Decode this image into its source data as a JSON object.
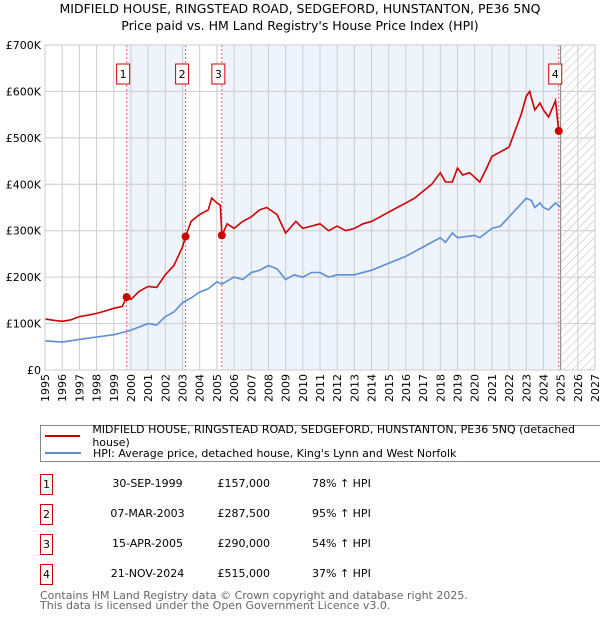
{
  "chart_data": {
    "type": "line",
    "title": "MIDFIELD HOUSE, RINGSTEAD ROAD, SEDGEFORD, HUNSTANTON, PE36 5NQ",
    "subtitle": "Price paid vs. HM Land Registry's House Price Index (HPI)",
    "xlim": [
      1995,
      2027
    ],
    "ylim": [
      0,
      700000
    ],
    "x_ticks": [
      "1995",
      "1996",
      "1997",
      "1998",
      "1999",
      "2000",
      "2001",
      "2002",
      "2003",
      "2004",
      "2005",
      "2006",
      "2007",
      "2008",
      "2009",
      "2010",
      "2011",
      "2012",
      "2013",
      "2014",
      "2015",
      "2016",
      "2017",
      "2018",
      "2019",
      "2020",
      "2021",
      "2022",
      "2023",
      "2024",
      "2025",
      "2026",
      "2027"
    ],
    "y_ticks": [
      {
        "v": 0,
        "label": "£0"
      },
      {
        "v": 100000,
        "label": "£100K"
      },
      {
        "v": 200000,
        "label": "£200K"
      },
      {
        "v": 300000,
        "label": "£300K"
      },
      {
        "v": 400000,
        "label": "£400K"
      },
      {
        "v": 500000,
        "label": "£500K"
      },
      {
        "v": 600000,
        "label": "£600K"
      },
      {
        "v": 700000,
        "label": "£700K"
      }
    ],
    "grid": true,
    "colors": {
      "property": "#cc0000",
      "hpi": "#5b8fd4",
      "shade": "#eef3fc",
      "marker_line": "#e06060"
    },
    "series": [
      {
        "name": "MIDFIELD HOUSE, RINGSTEAD ROAD, SEDGEFORD, HUNSTANTON, PE36 5NQ (detached house)",
        "color": "#cc0000",
        "x": [
          1995,
          1995.5,
          1996,
          1996.5,
          1997,
          1997.5,
          1998,
          1998.5,
          1999,
          1999.5,
          1999.75,
          2000,
          2000.5,
          2001,
          2001.5,
          2002,
          2002.5,
          2003,
          2003.18,
          2003.5,
          2004,
          2004.5,
          2004.7,
          2005,
          2005.2,
          2005.29,
          2005.6,
          2006,
          2006.5,
          2007,
          2007.5,
          2007.9,
          2008.5,
          2009,
          2009.6,
          2010,
          2010.5,
          2011,
          2011.5,
          2012,
          2012.5,
          2013,
          2013.5,
          2014,
          2014.5,
          2015,
          2015.5,
          2016,
          2016.5,
          2017,
          2017.5,
          2018,
          2018.3,
          2018.7,
          2019,
          2019.3,
          2019.7,
          2020,
          2020.3,
          2020.7,
          2021,
          2021.5,
          2022,
          2022.3,
          2022.7,
          2023,
          2023.2,
          2023.5,
          2023.8,
          2024,
          2024.3,
          2024.7,
          2024.89
        ],
        "values": [
          110000,
          107000,
          105000,
          108000,
          115000,
          118000,
          122000,
          127000,
          133000,
          137000,
          157000,
          152000,
          170000,
          180000,
          178000,
          205000,
          225000,
          265000,
          287500,
          320000,
          335000,
          345000,
          370000,
          360000,
          355000,
          290000,
          315000,
          305000,
          320000,
          330000,
          345000,
          350000,
          335000,
          295000,
          320000,
          305000,
          310000,
          315000,
          300000,
          310000,
          300000,
          305000,
          315000,
          320000,
          330000,
          340000,
          350000,
          360000,
          370000,
          385000,
          400000,
          425000,
          405000,
          405000,
          435000,
          420000,
          425000,
          415000,
          405000,
          435000,
          460000,
          470000,
          480000,
          510000,
          550000,
          590000,
          600000,
          560000,
          575000,
          560000,
          545000,
          580000,
          515000
        ]
      },
      {
        "name": "HPI: Average price, detached house, King's Lynn and West Norfolk",
        "color": "#5b8fd4",
        "x": [
          1995,
          1996,
          1997,
          1998,
          1999,
          1999.75,
          2000,
          2001,
          2001.5,
          2002,
          2002.5,
          2003,
          2003.5,
          2004,
          2004.5,
          2005,
          2005.3,
          2006,
          2006.5,
          2007,
          2007.5,
          2008,
          2008.5,
          2009,
          2009.5,
          2010,
          2010.5,
          2011,
          2011.5,
          2012,
          2013,
          2014,
          2015,
          2016,
          2017,
          2018,
          2018.3,
          2018.7,
          2019,
          2020,
          2020.3,
          2021,
          2021.5,
          2022,
          2022.5,
          2023,
          2023.3,
          2023.5,
          2023.8,
          2024,
          2024.3,
          2024.7,
          2025
        ],
        "values": [
          63000,
          60000,
          66000,
          71000,
          76000,
          83000,
          86000,
          100000,
          97000,
          115000,
          125000,
          145000,
          155000,
          168000,
          175000,
          190000,
          185000,
          200000,
          195000,
          210000,
          215000,
          225000,
          218000,
          195000,
          205000,
          200000,
          210000,
          210000,
          200000,
          205000,
          205000,
          215000,
          230000,
          245000,
          265000,
          285000,
          275000,
          295000,
          285000,
          290000,
          285000,
          305000,
          310000,
          330000,
          350000,
          370000,
          365000,
          350000,
          360000,
          350000,
          345000,
          360000,
          350000
        ]
      }
    ],
    "sales": [
      {
        "num": "1",
        "x": 1999.75,
        "value": 157000,
        "date": "30-SEP-1999",
        "price": "£157,000",
        "hpi": "78% ↑ HPI"
      },
      {
        "num": "2",
        "x": 2003.18,
        "value": 287500,
        "date": "07-MAR-2003",
        "price": "£287,500",
        "hpi": "95% ↑ HPI"
      },
      {
        "num": "3",
        "x": 2005.29,
        "value": 290000,
        "date": "15-APR-2005",
        "price": "£290,000",
        "hpi": "54% ↑ HPI"
      },
      {
        "num": "4",
        "x": 2024.89,
        "value": 515000,
        "date": "21-NOV-2024",
        "price": "£515,000",
        "hpi": "37% ↑ HPI"
      }
    ],
    "forecast_start": 2025
  },
  "footer": {
    "line1": "Contains HM Land Registry data © Crown copyright and database right 2025.",
    "line2": "This data is licensed under the Open Government Licence v3.0."
  }
}
